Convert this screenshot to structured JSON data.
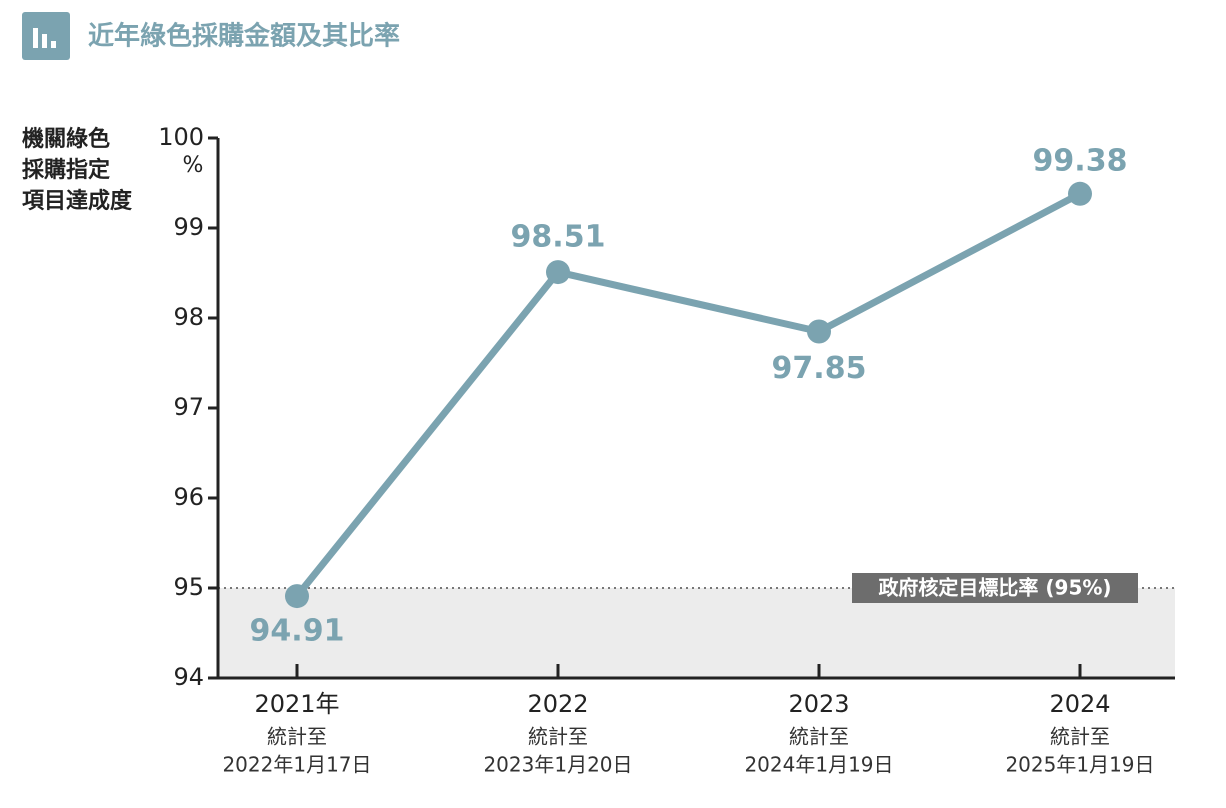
{
  "chart_data": {
    "type": "line",
    "title": "近年綠色採購金額及其比率",
    "ylabel": [
      "機關綠色",
      "採購指定",
      "項目達成度"
    ],
    "y_unit": "%",
    "categories": [
      "2021年",
      "2022",
      "2023",
      "2024"
    ],
    "category_notes": [
      [
        "統計至",
        "2022年1月17日"
      ],
      [
        "統計至",
        "2023年1月20日"
      ],
      [
        "統計至",
        "2024年1月19日"
      ],
      [
        "統計至",
        "2025年1月19日"
      ]
    ],
    "series": [
      {
        "color": "#7ba3b0",
        "values": [
          94.91,
          98.51,
          97.85,
          99.38
        ]
      }
    ],
    "ylim": [
      94,
      100
    ],
    "yticks": [
      94,
      95,
      96,
      97,
      98,
      99,
      100
    ],
    "target": {
      "value": 95,
      "label": "政府核定目標比率 (95%)"
    }
  }
}
